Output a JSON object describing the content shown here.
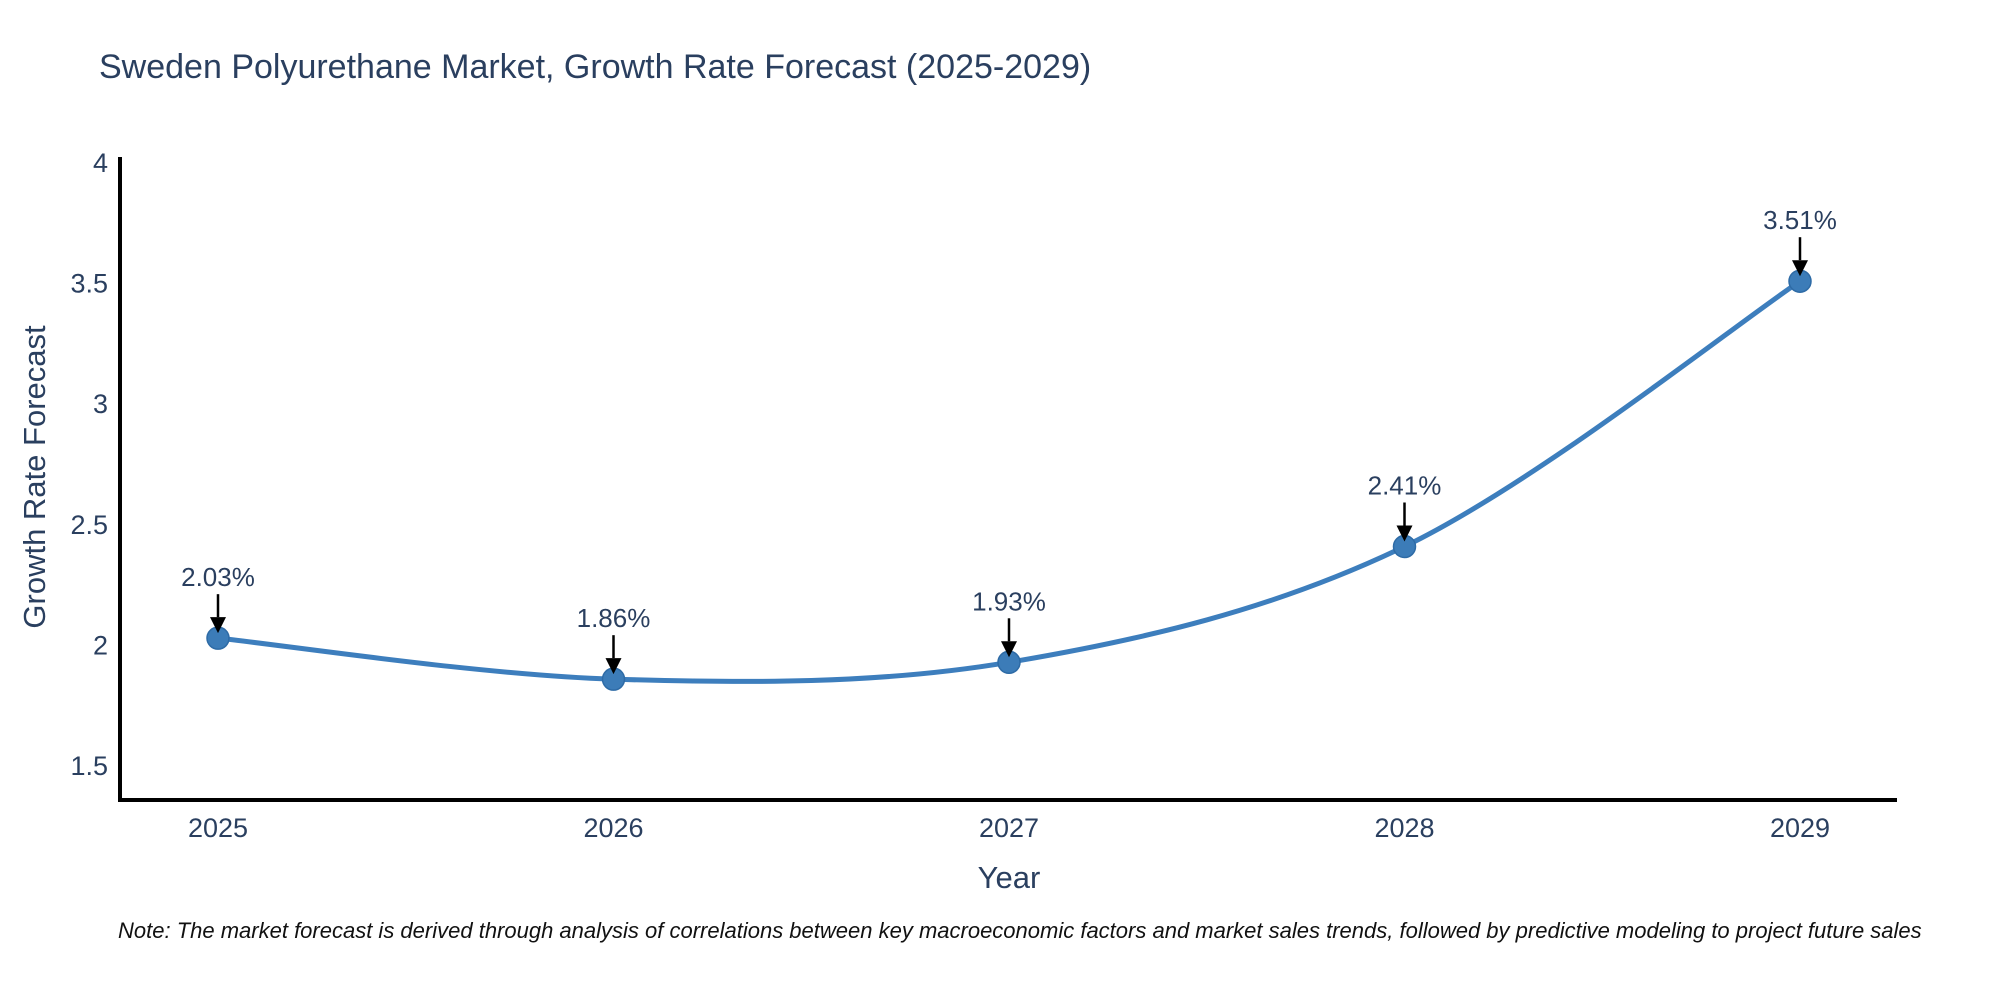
{
  "chart_data": {
    "type": "line",
    "title": "Sweden Polyurethane Market, Growth Rate Forecast (2025-2029)",
    "xlabel": "Year",
    "ylabel": "Growth Rate Forecast",
    "x": [
      2025,
      2026,
      2027,
      2028,
      2029
    ],
    "series": [
      {
        "name": "Growth Rate Forecast",
        "values": [
          2.03,
          1.86,
          1.93,
          2.41,
          3.51
        ]
      }
    ],
    "point_labels": [
      "2.03%",
      "1.86%",
      "1.93%",
      "2.41%",
      "3.51%"
    ],
    "xticks": [
      "2025",
      "2026",
      "2027",
      "2028",
      "2029"
    ],
    "yticks": [
      1.5,
      2,
      2.5,
      3,
      3.5,
      4
    ],
    "ylim": [
      1.36,
      4.02
    ],
    "line_shape": "spline",
    "markers": true,
    "grid": false,
    "legend": "none",
    "note": "Note: The market forecast is derived through analysis of correlations between key macroeconomic factors and market sales trends, followed by predictive modeling to project future sales",
    "colors": {
      "line": "#3d7ebd",
      "marker_fill": "#3c7cb8",
      "marker_edge": "#2e6ba6",
      "axis": "#000000",
      "title_text": "#2a3f5f",
      "tick_text": "#2a3f5f",
      "annotation_text": "#2a3f5f",
      "arrow": "#000000",
      "note_text": "#111111",
      "background": "#ffffff"
    }
  }
}
